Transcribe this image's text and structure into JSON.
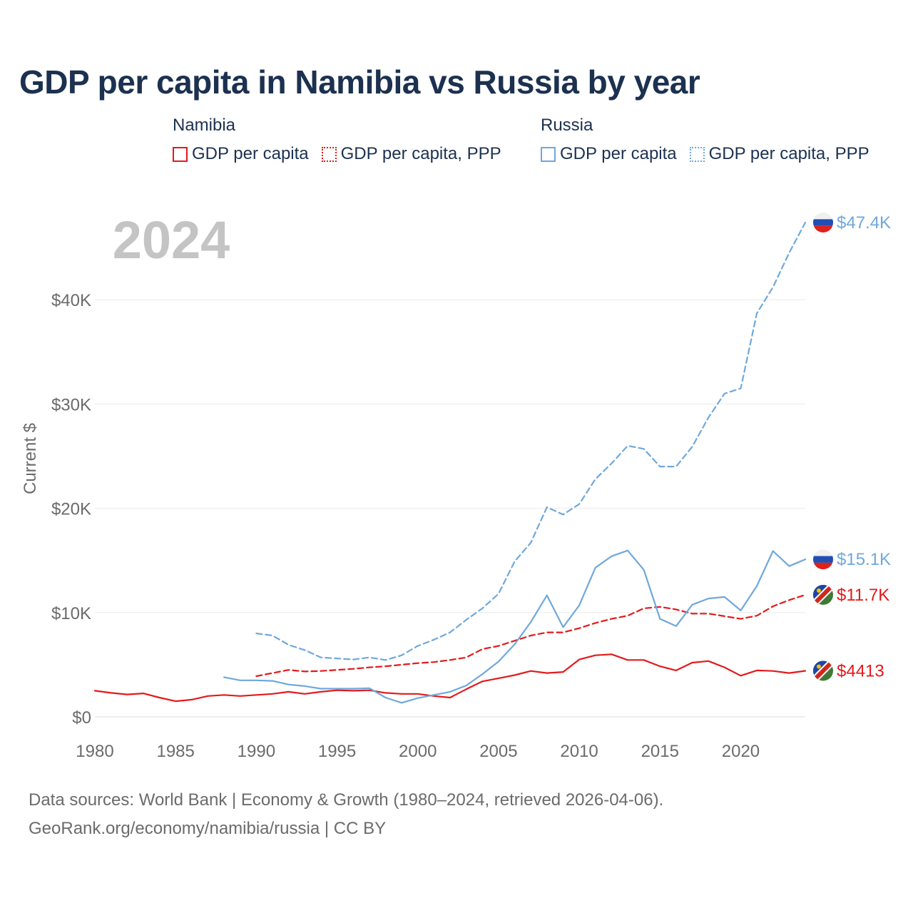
{
  "title": "GDP per capita in Namibia vs Russia by year",
  "legend": {
    "groups": [
      {
        "name": "Namibia",
        "items": [
          {
            "label": "GDP per capita",
            "color": "#e31a1c",
            "style": "solid"
          },
          {
            "label": "GDP per capita, PPP",
            "color": "#e31a1c",
            "style": "dotted"
          }
        ]
      },
      {
        "name": "Russia",
        "items": [
          {
            "label": "GDP per capita",
            "color": "#6fa8dc",
            "style": "solid"
          },
          {
            "label": "GDP per capita, PPP",
            "color": "#6fa8dc",
            "style": "dotted"
          }
        ]
      }
    ]
  },
  "year_label": "2024",
  "chart_data": {
    "type": "line",
    "title": "GDP per capita in Namibia vs Russia by year",
    "xlabel": "",
    "ylabel": "Current $",
    "xlim": [
      1980,
      2024
    ],
    "ylim": [
      0,
      47400
    ],
    "x_ticks": [
      1980,
      1985,
      1990,
      1995,
      2000,
      2005,
      2010,
      2015,
      2020
    ],
    "y_ticks": [
      {
        "value": 0,
        "label": "$0"
      },
      {
        "value": 10000,
        "label": "$10K"
      },
      {
        "value": 20000,
        "label": "$20K"
      },
      {
        "value": 30000,
        "label": "$30K"
      },
      {
        "value": 40000,
        "label": "$40K"
      }
    ],
    "series": [
      {
        "name": "Namibia GDP per capita",
        "country": "Namibia",
        "color": "#e31a1c",
        "dash": "solid",
        "start": 1980,
        "end_label": "$4413",
        "values": [
          2500,
          2300,
          2150,
          2250,
          1850,
          1500,
          1650,
          2000,
          2100,
          2000,
          2100,
          2200,
          2400,
          2200,
          2400,
          2550,
          2500,
          2550,
          2300,
          2200,
          2200,
          2000,
          1850,
          2650,
          3400,
          3700,
          4000,
          4400,
          4200,
          4300,
          5500,
          5900,
          6000,
          5450,
          5450,
          4850,
          4450,
          5200,
          5350,
          4750,
          3950,
          4450,
          4400,
          4200,
          4413
        ]
      },
      {
        "name": "Namibia GDP per capita, PPP",
        "country": "Namibia",
        "color": "#e31a1c",
        "dash": "dashed",
        "start": 1990,
        "end_label": "$11.7K",
        "values": [
          3900,
          4200,
          4500,
          4350,
          4400,
          4500,
          4600,
          4750,
          4850,
          5000,
          5150,
          5250,
          5450,
          5700,
          6500,
          6800,
          7300,
          7800,
          8100,
          8100,
          8500,
          9000,
          9400,
          9700,
          10400,
          10550,
          10300,
          9900,
          9900,
          9650,
          9400,
          9700,
          10600,
          11200,
          11700
        ]
      },
      {
        "name": "Russia GDP per capita",
        "country": "Russia",
        "color": "#6fa8dc",
        "dash": "solid",
        "start": 1988,
        "end_label": "$15.1K",
        "values": [
          3800,
          3500,
          3500,
          3450,
          3100,
          2950,
          2700,
          2700,
          2700,
          2750,
          1850,
          1350,
          1800,
          2100,
          2400,
          3000,
          4100,
          5300,
          6950,
          9100,
          11650,
          8600,
          10700,
          14300,
          15400,
          15950,
          14100,
          9400,
          8700,
          10750,
          11350,
          11500,
          10200,
          12550,
          15900,
          14450,
          15100
        ]
      },
      {
        "name": "Russia GDP per capita, PPP",
        "country": "Russia",
        "color": "#6fa8dc",
        "dash": "dashed",
        "start": 1990,
        "end_label": "$47.4K",
        "values": [
          8000,
          7800,
          6900,
          6400,
          5700,
          5600,
          5500,
          5700,
          5450,
          5900,
          6800,
          7400,
          8100,
          9300,
          10400,
          11800,
          14900,
          16700,
          20100,
          19400,
          20400,
          22800,
          24300,
          26000,
          25700,
          24000,
          24000,
          25900,
          28700,
          31000,
          31500,
          38700,
          41200,
          44500,
          47400
        ]
      }
    ]
  },
  "footer": {
    "line1": "Data sources: World Bank | Economy & Growth (1980–2024, retrieved 2026-04-06).",
    "line2": "GeoRank.org/economy/namibia/russia | CC BY"
  }
}
